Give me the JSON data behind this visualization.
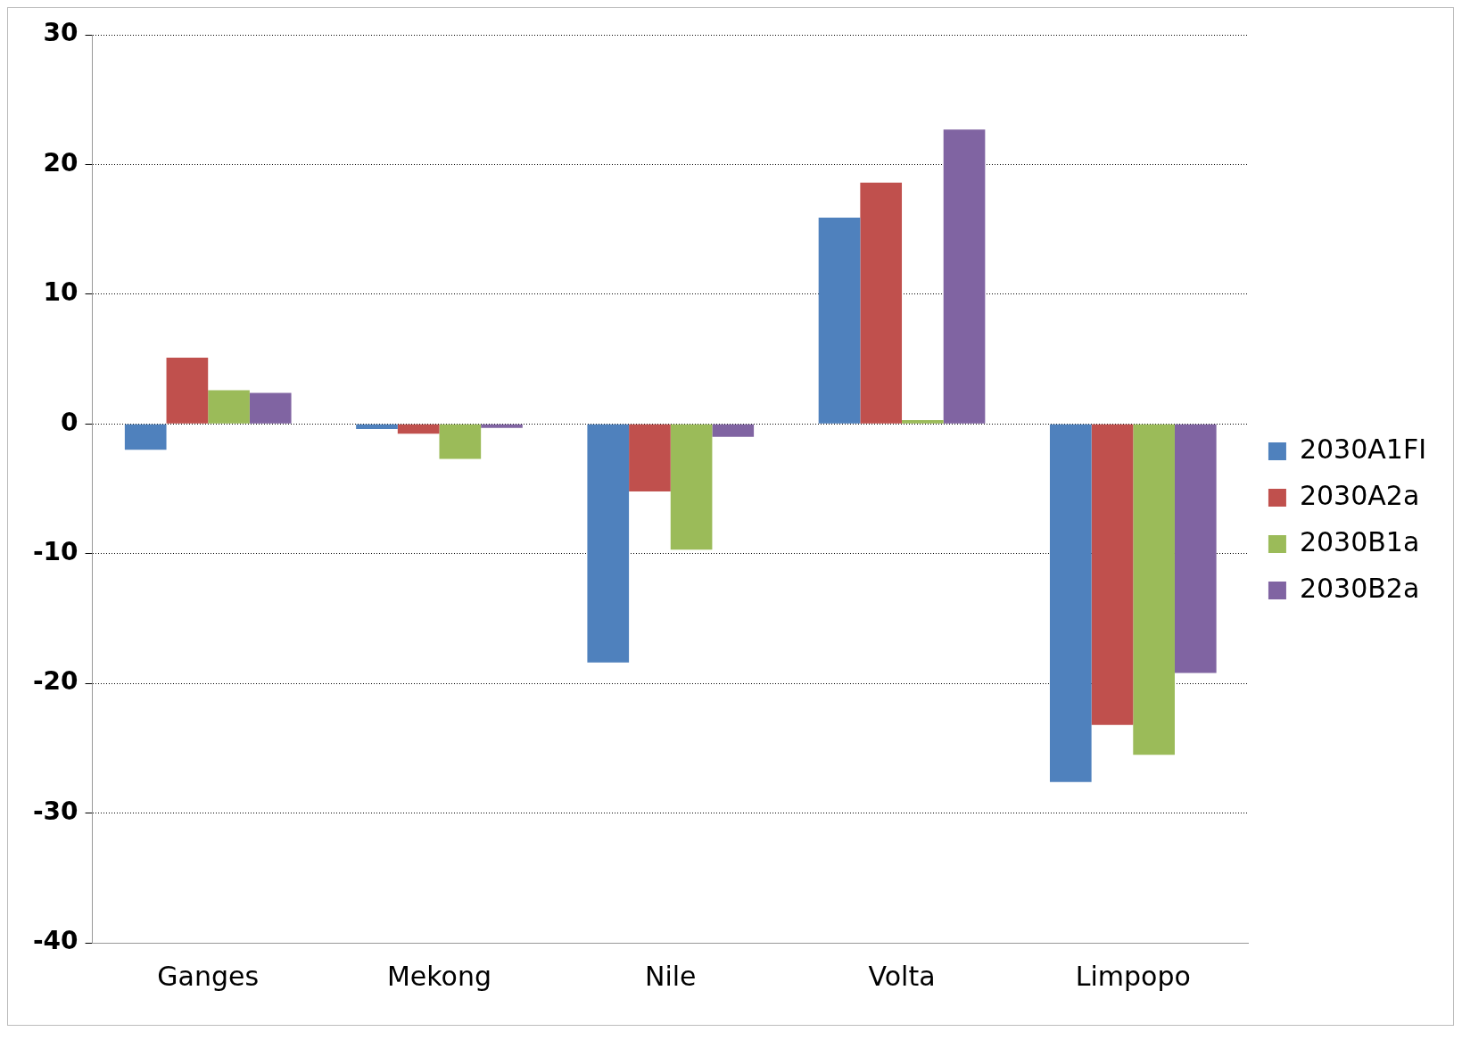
{
  "chart_data": {
    "type": "bar",
    "categories": [
      "Ganges",
      "Mekong",
      "Nile",
      "Volta",
      "Limpopo"
    ],
    "series": [
      {
        "name": "2030A1FI",
        "color": "#4f81bd",
        "values": [
          -2.0,
          -0.4,
          -18.4,
          15.9,
          -27.6
        ]
      },
      {
        "name": "2030A2a",
        "color": "#c0504d",
        "values": [
          5.1,
          -0.75,
          -5.2,
          18.6,
          -23.2
        ]
      },
      {
        "name": "2030B1a",
        "color": "#9bbb59",
        "values": [
          2.6,
          -2.7,
          -9.7,
          0.3,
          -25.5
        ]
      },
      {
        "name": "2030B2a",
        "color": "#8064a2",
        "values": [
          2.4,
          -0.3,
          -1.0,
          22.7,
          -19.2
        ]
      }
    ],
    "ylim": [
      -40,
      30
    ],
    "yticks": [
      -40,
      -30,
      -20,
      -10,
      0,
      10,
      20,
      30
    ],
    "grid": "y",
    "legend": "right"
  }
}
